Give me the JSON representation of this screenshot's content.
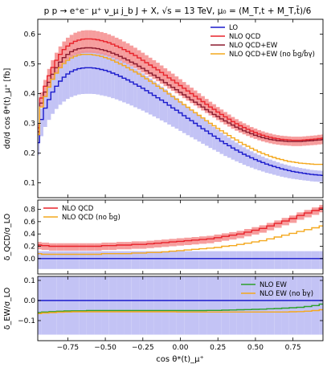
{
  "title": "p p → e⁺e⁻ μ⁺ ν_μ j_b J + X, √s = 13 TeV, μ₀ = (M_T,t + M_T,t̄)/6",
  "xlabel": "cos θ*(t)_μ⁺",
  "chart_data": [
    {
      "type": "line",
      "panel": "main",
      "ylabel": "dσ/d cos θ*(t)_μ⁺ [fb]",
      "xlim": [
        -0.95,
        0.95
      ],
      "ylim": [
        0.05,
        0.65
      ],
      "yticks": [
        "0.1",
        "0.2",
        "0.3",
        "0.4",
        "0.5",
        "0.6"
      ],
      "legend_position": "top-right",
      "x": [
        -0.95,
        -0.925,
        -0.9,
        -0.875,
        -0.85,
        -0.825,
        -0.8,
        -0.775,
        -0.75,
        -0.725,
        -0.7,
        -0.675,
        -0.65,
        -0.625,
        -0.6,
        -0.575,
        -0.55,
        -0.525,
        -0.5,
        -0.475,
        -0.45,
        -0.425,
        -0.4,
        -0.375,
        -0.35,
        -0.325,
        -0.3,
        -0.275,
        -0.25,
        -0.225,
        -0.2,
        -0.175,
        -0.15,
        -0.125,
        -0.1,
        -0.075,
        -0.05,
        -0.025,
        0.0,
        0.025,
        0.05,
        0.075,
        0.1,
        0.125,
        0.15,
        0.175,
        0.2,
        0.225,
        0.25,
        0.275,
        0.3,
        0.325,
        0.35,
        0.375,
        0.4,
        0.425,
        0.45,
        0.475,
        0.5,
        0.525,
        0.55,
        0.575,
        0.6,
        0.625,
        0.65,
        0.675,
        0.7,
        0.725,
        0.75,
        0.775,
        0.8,
        0.825,
        0.85,
        0.875,
        0.9,
        0.925,
        0.95
      ],
      "series": [
        {
          "name": "LO",
          "color": "#1a1acc",
          "values": [
            0.235,
            0.313,
            0.351,
            0.38,
            0.405,
            0.425,
            0.442,
            0.455,
            0.466,
            0.474,
            0.48,
            0.484,
            0.486,
            0.487,
            0.487,
            0.486,
            0.484,
            0.481,
            0.478,
            0.474,
            0.469,
            0.464,
            0.458,
            0.452,
            0.446,
            0.439,
            0.432,
            0.425,
            0.418,
            0.41,
            0.402,
            0.394,
            0.386,
            0.378,
            0.37,
            0.361,
            0.352,
            0.344,
            0.335,
            0.326,
            0.317,
            0.309,
            0.3,
            0.291,
            0.282,
            0.274,
            0.265,
            0.257,
            0.249,
            0.24,
            0.232,
            0.225,
            0.217,
            0.21,
            0.203,
            0.196,
            0.19,
            0.184,
            0.178,
            0.173,
            0.168,
            0.163,
            0.159,
            0.155,
            0.151,
            0.147,
            0.144,
            0.141,
            0.138,
            0.136,
            0.134,
            0.132,
            0.13,
            0.128,
            0.127,
            0.126,
            0.125
          ],
          "band": {
            "color": "#b8b8f3",
            "rel_lo": 0.82,
            "rel_hi": 1.12
          }
        },
        {
          "name": "NLO QCD",
          "color": "#e8232b",
          "values": [
            0.285,
            0.385,
            0.425,
            0.46,
            0.488,
            0.512,
            0.532,
            0.548,
            0.56,
            0.569,
            0.576,
            0.58,
            0.583,
            0.584,
            0.584,
            0.583,
            0.581,
            0.578,
            0.575,
            0.571,
            0.566,
            0.56,
            0.555,
            0.548,
            0.542,
            0.535,
            0.528,
            0.52,
            0.512,
            0.504,
            0.496,
            0.488,
            0.48,
            0.471,
            0.462,
            0.453,
            0.445,
            0.436,
            0.427,
            0.418,
            0.409,
            0.4,
            0.391,
            0.382,
            0.373,
            0.364,
            0.355,
            0.347,
            0.338,
            0.33,
            0.322,
            0.314,
            0.306,
            0.299,
            0.292,
            0.286,
            0.28,
            0.274,
            0.269,
            0.264,
            0.26,
            0.256,
            0.253,
            0.25,
            0.248,
            0.246,
            0.245,
            0.244,
            0.243,
            0.243,
            0.243,
            0.244,
            0.245,
            0.246,
            0.247,
            0.249,
            0.25
          ],
          "band": {
            "color": "#f48c8c",
            "rel_lo": 0.92,
            "rel_hi": 1.05
          }
        },
        {
          "name": "NLO QCD+EW",
          "color": "#8b1a2e",
          "values": [
            0.272,
            0.368,
            0.405,
            0.438,
            0.465,
            0.487,
            0.506,
            0.521,
            0.532,
            0.541,
            0.547,
            0.551,
            0.553,
            0.554,
            0.554,
            0.553,
            0.551,
            0.548,
            0.545,
            0.541,
            0.536,
            0.531,
            0.525,
            0.519,
            0.513,
            0.506,
            0.5,
            0.492,
            0.485,
            0.477,
            0.469,
            0.462,
            0.454,
            0.446,
            0.437,
            0.429,
            0.421,
            0.413,
            0.404,
            0.396,
            0.388,
            0.379,
            0.371,
            0.363,
            0.355,
            0.346,
            0.338,
            0.33,
            0.323,
            0.315,
            0.308,
            0.301,
            0.294,
            0.287,
            0.281,
            0.275,
            0.27,
            0.265,
            0.26,
            0.256,
            0.252,
            0.249,
            0.246,
            0.244,
            0.242,
            0.241,
            0.24,
            0.239,
            0.239,
            0.239,
            0.239,
            0.24,
            0.241,
            0.242,
            0.243,
            0.244,
            0.245
          ]
        },
        {
          "name": "NLO QCD+EW (no b̄g/b̄γ)",
          "color": "#f4a81d",
          "values": [
            0.262,
            0.355,
            0.39,
            0.422,
            0.448,
            0.469,
            0.487,
            0.501,
            0.512,
            0.52,
            0.526,
            0.53,
            0.532,
            0.532,
            0.532,
            0.53,
            0.528,
            0.525,
            0.521,
            0.517,
            0.512,
            0.506,
            0.5,
            0.494,
            0.487,
            0.48,
            0.473,
            0.466,
            0.458,
            0.45,
            0.442,
            0.434,
            0.425,
            0.417,
            0.408,
            0.399,
            0.39,
            0.381,
            0.372,
            0.363,
            0.354,
            0.345,
            0.336,
            0.327,
            0.318,
            0.309,
            0.3,
            0.292,
            0.283,
            0.275,
            0.267,
            0.259,
            0.251,
            0.244,
            0.236,
            0.229,
            0.223,
            0.216,
            0.21,
            0.204,
            0.199,
            0.194,
            0.189,
            0.185,
            0.181,
            0.178,
            0.175,
            0.172,
            0.17,
            0.168,
            0.166,
            0.165,
            0.164,
            0.163,
            0.162,
            0.162,
            0.162
          ]
        }
      ]
    },
    {
      "type": "line",
      "panel": "ratio-qcd",
      "ylabel": "δ_QCD/σ_LO",
      "ylim": [
        -0.25,
        0.95
      ],
      "yticks": [
        "0.0",
        "0.2",
        "0.4",
        "0.6",
        "0.8"
      ],
      "legend_position": "top-left",
      "x": [
        -0.95,
        -0.9,
        -0.85,
        -0.8,
        -0.75,
        -0.7,
        -0.65,
        -0.6,
        -0.55,
        -0.5,
        -0.45,
        -0.4,
        -0.35,
        -0.3,
        -0.25,
        -0.2,
        -0.15,
        -0.1,
        -0.05,
        0.0,
        0.05,
        0.1,
        0.15,
        0.2,
        0.25,
        0.3,
        0.35,
        0.4,
        0.45,
        0.5,
        0.55,
        0.6,
        0.65,
        0.7,
        0.75,
        0.8,
        0.85,
        0.9,
        0.95
      ],
      "series": [
        {
          "name": "NLO QCD",
          "color": "#e8232b",
          "values": [
            0.22,
            0.21,
            0.2,
            0.2,
            0.2,
            0.2,
            0.2,
            0.2,
            0.2,
            0.21,
            0.21,
            0.22,
            0.22,
            0.23,
            0.23,
            0.24,
            0.25,
            0.26,
            0.27,
            0.28,
            0.29,
            0.3,
            0.31,
            0.32,
            0.34,
            0.36,
            0.38,
            0.4,
            0.43,
            0.46,
            0.49,
            0.53,
            0.57,
            0.61,
            0.65,
            0.7,
            0.74,
            0.78,
            0.82
          ],
          "band": {
            "color": "#f48c8c",
            "abs_lo": 0.07,
            "abs_hi": 0.05
          }
        },
        {
          "name": "NLO QCD (no b̄g)",
          "color": "#f4a81d",
          "values": [
            0.08,
            0.07,
            0.07,
            0.07,
            0.07,
            0.07,
            0.07,
            0.07,
            0.07,
            0.08,
            0.08,
            0.08,
            0.08,
            0.09,
            0.09,
            0.1,
            0.1,
            0.11,
            0.12,
            0.13,
            0.14,
            0.15,
            0.16,
            0.17,
            0.18,
            0.2,
            0.21,
            0.23,
            0.25,
            0.27,
            0.29,
            0.32,
            0.35,
            0.38,
            0.41,
            0.44,
            0.47,
            0.5,
            0.53
          ]
        },
        {
          "name": "LO",
          "color": "#1a1acc",
          "values": [
            0,
            0,
            0,
            0,
            0,
            0,
            0,
            0,
            0,
            0,
            0,
            0,
            0,
            0,
            0,
            0,
            0,
            0,
            0,
            0,
            0,
            0,
            0,
            0,
            0,
            0,
            0,
            0,
            0,
            0,
            0,
            0,
            0,
            0,
            0,
            0,
            0,
            0,
            0
          ],
          "band": {
            "color": "#b8b8f3",
            "abs_lo": 0.17,
            "abs_hi": 0.12
          }
        }
      ]
    },
    {
      "type": "line",
      "panel": "ratio-ew",
      "ylabel": "δ_EW/σ_LO",
      "xlabel": "cos θ*(t)_μ⁺",
      "ylim": [
        -0.2,
        0.12
      ],
      "yticks": [
        "−0.1",
        "0.0",
        "0.1"
      ],
      "xticks": [
        "−0.75",
        "−0.50",
        "−0.25",
        "0.00",
        "0.25",
        "0.50",
        "0.75"
      ],
      "xtick_values": [
        -0.75,
        -0.5,
        -0.25,
        0.0,
        0.25,
        0.5,
        0.75
      ],
      "legend_position": "top-right",
      "x": [
        -0.95,
        -0.9,
        -0.85,
        -0.8,
        -0.75,
        -0.7,
        -0.65,
        -0.6,
        -0.55,
        -0.5,
        -0.45,
        -0.4,
        -0.35,
        -0.3,
        -0.25,
        -0.2,
        -0.15,
        -0.1,
        -0.05,
        0.0,
        0.05,
        0.1,
        0.15,
        0.2,
        0.25,
        0.3,
        0.35,
        0.4,
        0.45,
        0.5,
        0.55,
        0.6,
        0.65,
        0.7,
        0.75,
        0.8,
        0.85,
        0.9,
        0.95
      ],
      "series": [
        {
          "name": "NLO EW",
          "color": "#2ca02c",
          "values": [
            -0.06,
            -0.057,
            -0.055,
            -0.053,
            -0.052,
            -0.051,
            -0.051,
            -0.05,
            -0.05,
            -0.05,
            -0.05,
            -0.05,
            -0.05,
            -0.05,
            -0.05,
            -0.05,
            -0.05,
            -0.05,
            -0.05,
            -0.05,
            -0.05,
            -0.05,
            -0.05,
            -0.049,
            -0.049,
            -0.048,
            -0.047,
            -0.046,
            -0.045,
            -0.044,
            -0.043,
            -0.041,
            -0.04,
            -0.038,
            -0.036,
            -0.034,
            -0.03,
            -0.025,
            -0.018
          ]
        },
        {
          "name": "NLO EW (no b̄γ)",
          "color": "#f4a81d",
          "values": [
            -0.065,
            -0.062,
            -0.06,
            -0.058,
            -0.057,
            -0.056,
            -0.056,
            -0.056,
            -0.056,
            -0.056,
            -0.056,
            -0.056,
            -0.056,
            -0.056,
            -0.056,
            -0.056,
            -0.056,
            -0.056,
            -0.056,
            -0.057,
            -0.057,
            -0.057,
            -0.057,
            -0.057,
            -0.057,
            -0.057,
            -0.057,
            -0.057,
            -0.057,
            -0.057,
            -0.057,
            -0.057,
            -0.057,
            -0.057,
            -0.056,
            -0.055,
            -0.053,
            -0.05,
            -0.046
          ]
        },
        {
          "name": "LO",
          "color": "#1a1acc",
          "values": [
            0,
            0,
            0,
            0,
            0,
            0,
            0,
            0,
            0,
            0,
            0,
            0,
            0,
            0,
            0,
            0,
            0,
            0,
            0,
            0,
            0,
            0,
            0,
            0,
            0,
            0,
            0,
            0,
            0,
            0,
            0,
            0,
            0,
            0,
            0,
            0,
            0,
            0,
            0
          ],
          "band": {
            "color": "#b8b8f3",
            "abs_lo": 0.17,
            "abs_hi": 0.12
          }
        }
      ]
    }
  ]
}
